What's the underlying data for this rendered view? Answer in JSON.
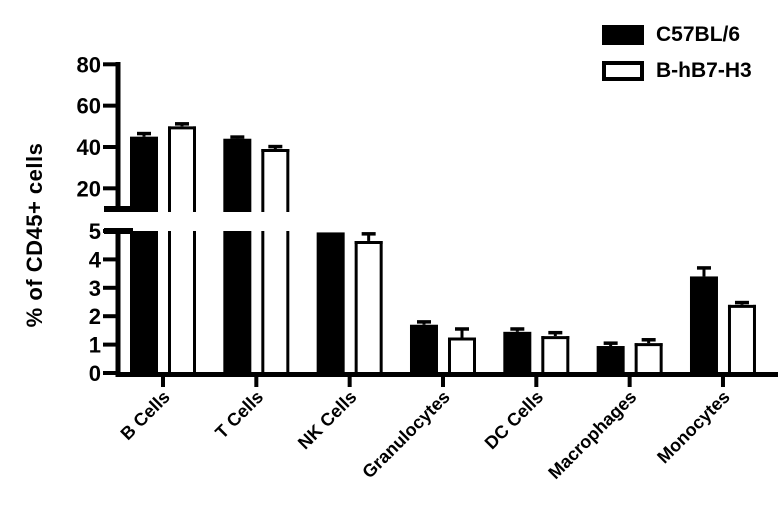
{
  "figure": {
    "background": "#ffffff",
    "axis_color": "#000000"
  },
  "chart_data": {
    "type": "bar",
    "title": "",
    "ylabel": "% of CD45+ cells",
    "xlabel": "",
    "grid": false,
    "legend_position": "top-right",
    "categories": [
      "B Cells",
      "T Cells",
      "NK Cells",
      "Granulocytes",
      "DC Cells",
      "Macrophages",
      "Monocytes"
    ],
    "series": [
      {
        "name": "C57BL/6",
        "fill": "#000000",
        "values": [
          45,
          44,
          4.95,
          1.7,
          1.45,
          0.95,
          3.4
        ],
        "sem": [
          1.5,
          0.8,
          0,
          0.1,
          0.1,
          0.1,
          0.3
        ]
      },
      {
        "name": "B-hB7-H3",
        "fill": "#ffffff",
        "values": [
          50,
          39,
          4.65,
          1.25,
          1.3,
          1.05,
          2.4
        ],
        "sem": [
          1.2,
          1.2,
          0.25,
          0.3,
          0.12,
          0.12,
          0.08
        ]
      }
    ],
    "y_axis": {
      "broken": true,
      "lower_segment": {
        "range": [
          0,
          5
        ],
        "ticks": [
          0,
          1,
          2,
          3,
          4,
          5
        ]
      },
      "upper_segment": {
        "range": [
          10,
          80
        ],
        "ticks": [
          20,
          40,
          60,
          80
        ]
      }
    }
  }
}
